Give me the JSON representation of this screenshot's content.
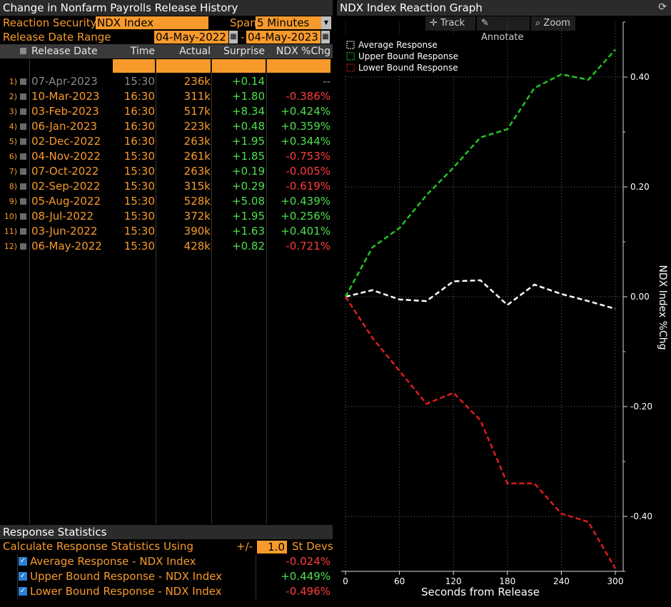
{
  "left": {
    "title": "Change in Nonfarm Payrolls Release History",
    "reaction_security_label": "Reaction Security",
    "reaction_security_value": "NDX Index",
    "span_label": "Span",
    "span_value": "5 Minutes",
    "date_range_label": "Release Date Range",
    "date_from": "04-May-2022",
    "date_sep": "-",
    "date_to": "04-May-2023",
    "columns": [
      "Release Date",
      "Time",
      "Actual",
      "Surprise",
      "NDX %Chg"
    ],
    "rows": [
      {
        "idx": "1)",
        "date": "07-Apr-2023",
        "time": "15:30",
        "actual": "236k",
        "surprise": "+0.14",
        "chg": "--",
        "dim": true
      },
      {
        "idx": "2)",
        "date": "10-Mar-2023",
        "time": "16:30",
        "actual": "311k",
        "surprise": "+1.80",
        "chg": "-0.386%"
      },
      {
        "idx": "3)",
        "date": "03-Feb-2023",
        "time": "16:30",
        "actual": "517k",
        "surprise": "+8.34",
        "chg": "+0.424%"
      },
      {
        "idx": "4)",
        "date": "06-Jan-2023",
        "time": "16:30",
        "actual": "223k",
        "surprise": "+0.48",
        "chg": "+0.359%"
      },
      {
        "idx": "5)",
        "date": "02-Dec-2022",
        "time": "16:30",
        "actual": "263k",
        "surprise": "+1.95",
        "chg": "+0.344%"
      },
      {
        "idx": "6)",
        "date": "04-Nov-2022",
        "time": "15:30",
        "actual": "261k",
        "surprise": "+1.85",
        "chg": "-0.753%"
      },
      {
        "idx": "7)",
        "date": "07-Oct-2022",
        "time": "15:30",
        "actual": "263k",
        "surprise": "+0.19",
        "chg": "-0.005%"
      },
      {
        "idx": "8)",
        "date": "02-Sep-2022",
        "time": "15:30",
        "actual": "315k",
        "surprise": "+0.29",
        "chg": "-0.619%"
      },
      {
        "idx": "9)",
        "date": "05-Aug-2022",
        "time": "15:30",
        "actual": "528k",
        "surprise": "+5.08",
        "chg": "+0.439%"
      },
      {
        "idx": "10)",
        "date": "08-Jul-2022",
        "time": "15:30",
        "actual": "372k",
        "surprise": "+1.95",
        "chg": "+0.256%"
      },
      {
        "idx": "11)",
        "date": "03-Jun-2022",
        "time": "15:30",
        "actual": "390k",
        "surprise": "+1.63",
        "chg": "+0.401%"
      },
      {
        "idx": "12)",
        "date": "06-May-2022",
        "time": "15:30",
        "actual": "428k",
        "surprise": "+0.82",
        "chg": "-0.721%"
      }
    ],
    "stats": {
      "title": "Response Statistics",
      "calc_label": "Calculate Response Statistics Using",
      "pm_label": "+/-",
      "stdev_value": "1.0",
      "stdev_label": "St Devs",
      "items": [
        {
          "label": "Average Response - NDX Index",
          "value": "-0.024%"
        },
        {
          "label": "Upper Bound Response - NDX Index",
          "value": "+0.449%"
        },
        {
          "label": "Lower Bound Response - NDX Index",
          "value": "-0.496%"
        }
      ]
    }
  },
  "right": {
    "title": "NDX Index Reaction Graph",
    "tools": {
      "track": "Track",
      "annotate": "Annotate",
      "zoom": "Zoom"
    },
    "icons": {
      "refresh": "refresh-icon",
      "track": "crosshair-icon",
      "annotate": "pencil-icon",
      "zoom": "magnifier-icon"
    }
  },
  "chart_data": {
    "type": "line",
    "xlabel": "Seconds from Release",
    "ylabel": "NDX Index %Chg",
    "xlim": [
      0,
      300
    ],
    "ylim": [
      -0.5,
      0.5
    ],
    "x_ticks": [
      0,
      60,
      120,
      180,
      240,
      300
    ],
    "y_ticks": [
      0.4,
      0.2,
      0.0,
      -0.2,
      -0.4
    ],
    "y_tick_labels": [
      "0.40",
      "0.20",
      "0.00",
      "-0.20",
      "-0.40"
    ],
    "grid": true,
    "legend": "top-left",
    "series": [
      {
        "name": "Average Response",
        "color": "#ffffff",
        "x": [
          0,
          30,
          60,
          90,
          120,
          150,
          180,
          210,
          240,
          270,
          300
        ],
        "y": [
          0.0,
          0.012,
          -0.005,
          -0.008,
          0.028,
          0.03,
          -0.015,
          0.022,
          0.005,
          -0.008,
          -0.022
        ]
      },
      {
        "name": "Upper Bound Response",
        "color": "#22c322",
        "x": [
          0,
          30,
          60,
          90,
          120,
          150,
          180,
          210,
          240,
          270,
          300
        ],
        "y": [
          0.0,
          0.09,
          0.125,
          0.185,
          0.235,
          0.29,
          0.305,
          0.38,
          0.405,
          0.395,
          0.45
        ]
      },
      {
        "name": "Lower Bound Response",
        "color": "#dd1d1d",
        "x": [
          0,
          30,
          60,
          90,
          120,
          150,
          180,
          210,
          240,
          270,
          300
        ],
        "y": [
          0.0,
          -0.075,
          -0.135,
          -0.195,
          -0.175,
          -0.225,
          -0.34,
          -0.34,
          -0.395,
          -0.41,
          -0.495
        ]
      }
    ]
  }
}
